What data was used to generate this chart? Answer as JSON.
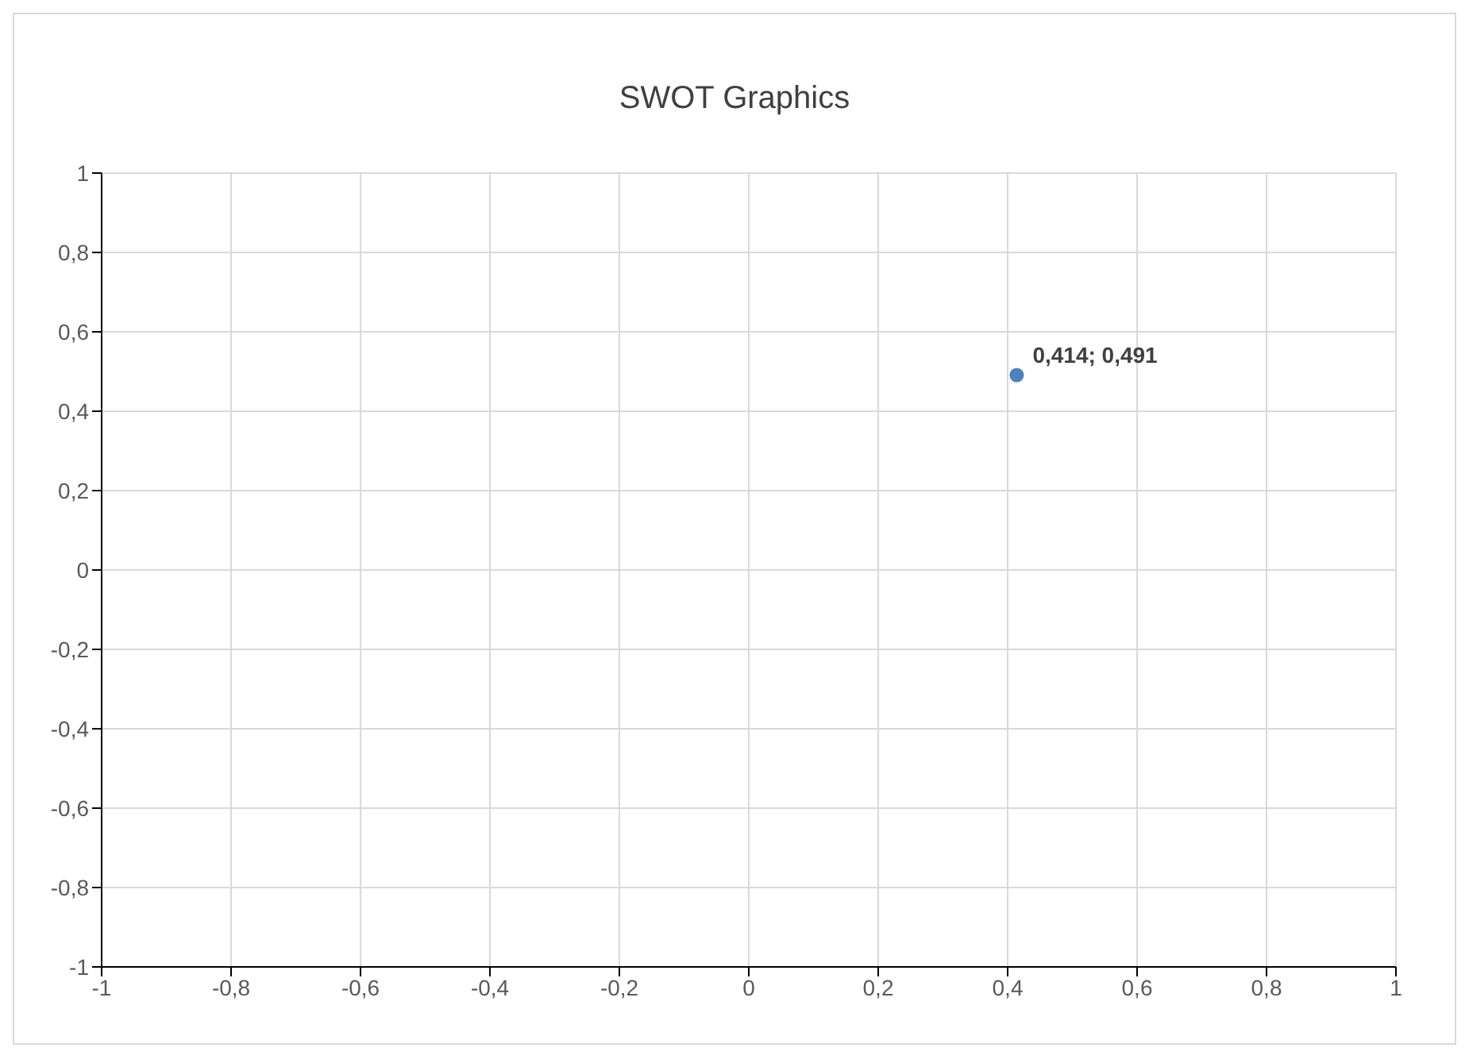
{
  "chart_data": {
    "type": "scatter",
    "title": "SWOT Graphics",
    "x": [
      0.414
    ],
    "series": [
      {
        "color": "#4f81bd",
        "values": [
          0.491
        ],
        "value_labels": [
          "0,414; 0,491"
        ]
      }
    ],
    "xlim": [
      -1,
      1
    ],
    "xticks": [
      {
        "value": -1,
        "label": "-1"
      },
      {
        "value": -0.8,
        "label": "-0,8"
      },
      {
        "value": -0.6,
        "label": "-0,6"
      },
      {
        "value": -0.4,
        "label": "-0,4"
      },
      {
        "value": -0.2,
        "label": "-0,2"
      },
      {
        "value": 0,
        "label": "0"
      },
      {
        "value": 0.2,
        "label": "0,2"
      },
      {
        "value": 0.4,
        "label": "0,4"
      },
      {
        "value": 0.6,
        "label": "0,6"
      },
      {
        "value": 0.8,
        "label": "0,8"
      },
      {
        "value": 1,
        "label": "1"
      }
    ],
    "ylim": [
      -1,
      1
    ],
    "yticks": [
      {
        "value": -1,
        "label": "-1"
      },
      {
        "value": -0.8,
        "label": "-0,8"
      },
      {
        "value": -0.6,
        "label": "-0,6"
      },
      {
        "value": -0.4,
        "label": "-0,4"
      },
      {
        "value": -0.2,
        "label": "-0,2"
      },
      {
        "value": 0,
        "label": "0"
      },
      {
        "value": 0.2,
        "label": "0,2"
      },
      {
        "value": 0.4,
        "label": "0,4"
      },
      {
        "value": 0.6,
        "label": "0,6"
      },
      {
        "value": 0.8,
        "label": "0,8"
      },
      {
        "value": 1,
        "label": "1"
      }
    ],
    "grid": true,
    "marker": "circle"
  }
}
